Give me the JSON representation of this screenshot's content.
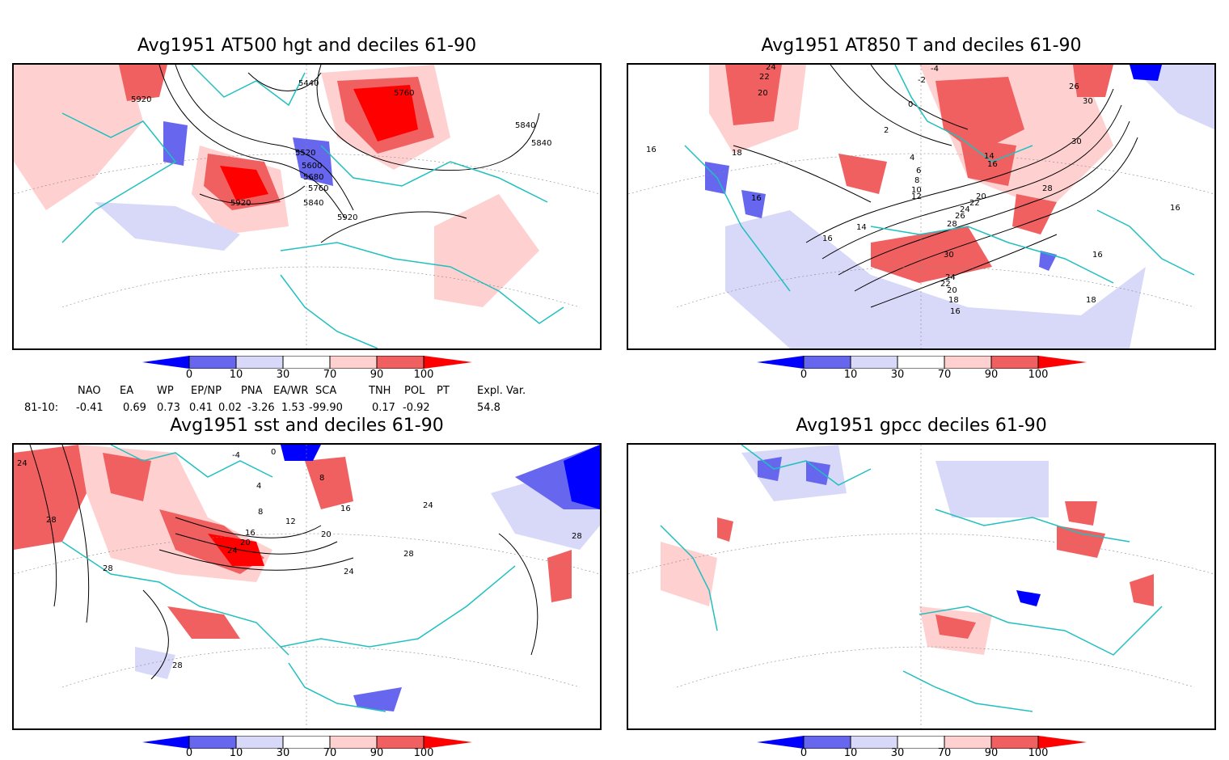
{
  "panels": [
    {
      "title": "Avg1951 AT500 hgt and deciles 61-90",
      "contour_labels": [
        "5920",
        "5440",
        "5760",
        "5840",
        "5840",
        "5520",
        "5600",
        "5680",
        "5760",
        "5840",
        "5920",
        "5920"
      ]
    },
    {
      "title": "Avg1951 AT850 T and deciles 61-90",
      "contour_labels": [
        "24",
        "22",
        "20",
        "-4",
        "-2",
        "0",
        "2",
        "4",
        "6",
        "8",
        "10",
        "12",
        "14",
        "16",
        "18",
        "16",
        "16",
        "14",
        "16",
        "20",
        "22",
        "24",
        "26",
        "28",
        "30",
        "26",
        "30",
        "30",
        "28",
        "16",
        "16",
        "24",
        "22",
        "20",
        "18",
        "16",
        "18"
      ]
    },
    {
      "title": "Avg1951 sst and deciles 61-90",
      "contour_labels": [
        "24",
        "28",
        "28",
        "4",
        "8",
        "12",
        "16",
        "20",
        "24",
        "16",
        "20",
        "24",
        "28",
        "28",
        "24",
        "28",
        "-4",
        "0",
        "8"
      ]
    },
    {
      "title": "Avg1951 gpcc deciles 61-90",
      "contour_labels": []
    }
  ],
  "colorbar": {
    "ticks": [
      "0",
      "10",
      "30",
      "70",
      "90",
      "100"
    ],
    "colors": [
      "#0000ff",
      "#6666ee",
      "#d8d8f8",
      "#ffffff",
      "#ffd0d0",
      "#f06060",
      "#ff0000"
    ]
  },
  "indices": {
    "headers": [
      "NAO",
      "EA",
      "WP",
      "EP/NP",
      "PNA",
      "EA/WR",
      "SCA",
      "TNH",
      "POL",
      "PT",
      "Expl. Var."
    ],
    "row_label": "81-10:",
    "values": [
      "-0.41",
      "0.69",
      "0.73",
      "0.41",
      "0.02",
      "-3.26",
      "1.53",
      "-99.90",
      "0.17",
      "-0.92",
      "54.8"
    ]
  }
}
